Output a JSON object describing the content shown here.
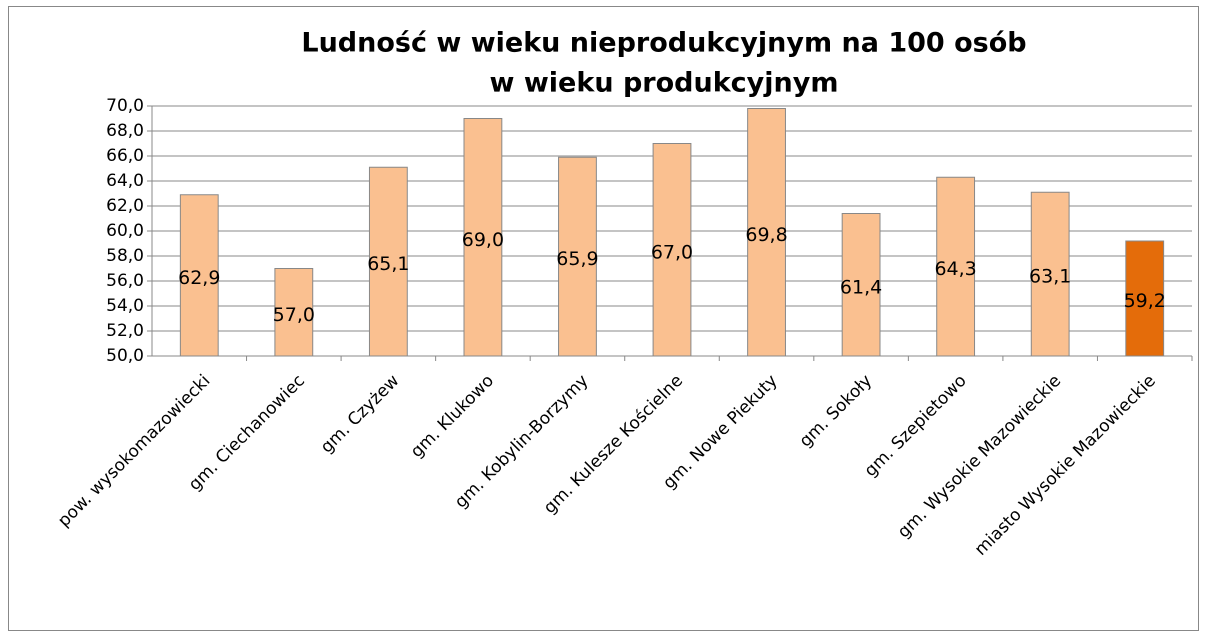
{
  "chart_data": {
    "type": "bar",
    "title": [
      "Ludność w wieku nieprodukcyjnym na 100 osób",
      "w wieku produkcyjnym"
    ],
    "categories": [
      "pow. wysokomazowiecki",
      "gm. Ciechanowiec",
      "gm. Czyżew",
      "gm. Klukowo",
      "gm. Kobylin-Borzymy",
      "gm. Kulesze Kościelne",
      "gm. Nowe Piekuty",
      "gm. Sokoły",
      "gm. Szepietowo",
      "gm. Wysokie Mazowieckie",
      "miasto Wysokie Mazowieckie"
    ],
    "values": [
      62.9,
      57.0,
      65.1,
      69.0,
      65.9,
      67.0,
      69.8,
      61.4,
      64.3,
      63.1,
      59.2
    ],
    "value_labels": [
      "62,9",
      "57,0",
      "65,1",
      "69,0",
      "65,9",
      "67,0",
      "69,8",
      "61,4",
      "64,3",
      "63,1",
      "59,2"
    ],
    "colors": [
      "#fac090",
      "#fac090",
      "#fac090",
      "#fac090",
      "#fac090",
      "#fac090",
      "#fac090",
      "#fac090",
      "#fac090",
      "#fac090",
      "#e46c0a"
    ],
    "ylim": [
      50,
      70
    ],
    "yticks": [
      {
        "value": 50,
        "label": "50,0"
      },
      {
        "value": 52,
        "label": "52,0"
      },
      {
        "value": 54,
        "label": "54,0"
      },
      {
        "value": 56,
        "label": "56,0"
      },
      {
        "value": 58,
        "label": "58,0"
      },
      {
        "value": 60,
        "label": "60,0"
      },
      {
        "value": 62,
        "label": "62,0"
      },
      {
        "value": 64,
        "label": "64,0"
      },
      {
        "value": 66,
        "label": "66,0"
      },
      {
        "value": 68,
        "label": "68,0"
      },
      {
        "value": 70,
        "label": "70,0"
      }
    ],
    "grid": true
  }
}
